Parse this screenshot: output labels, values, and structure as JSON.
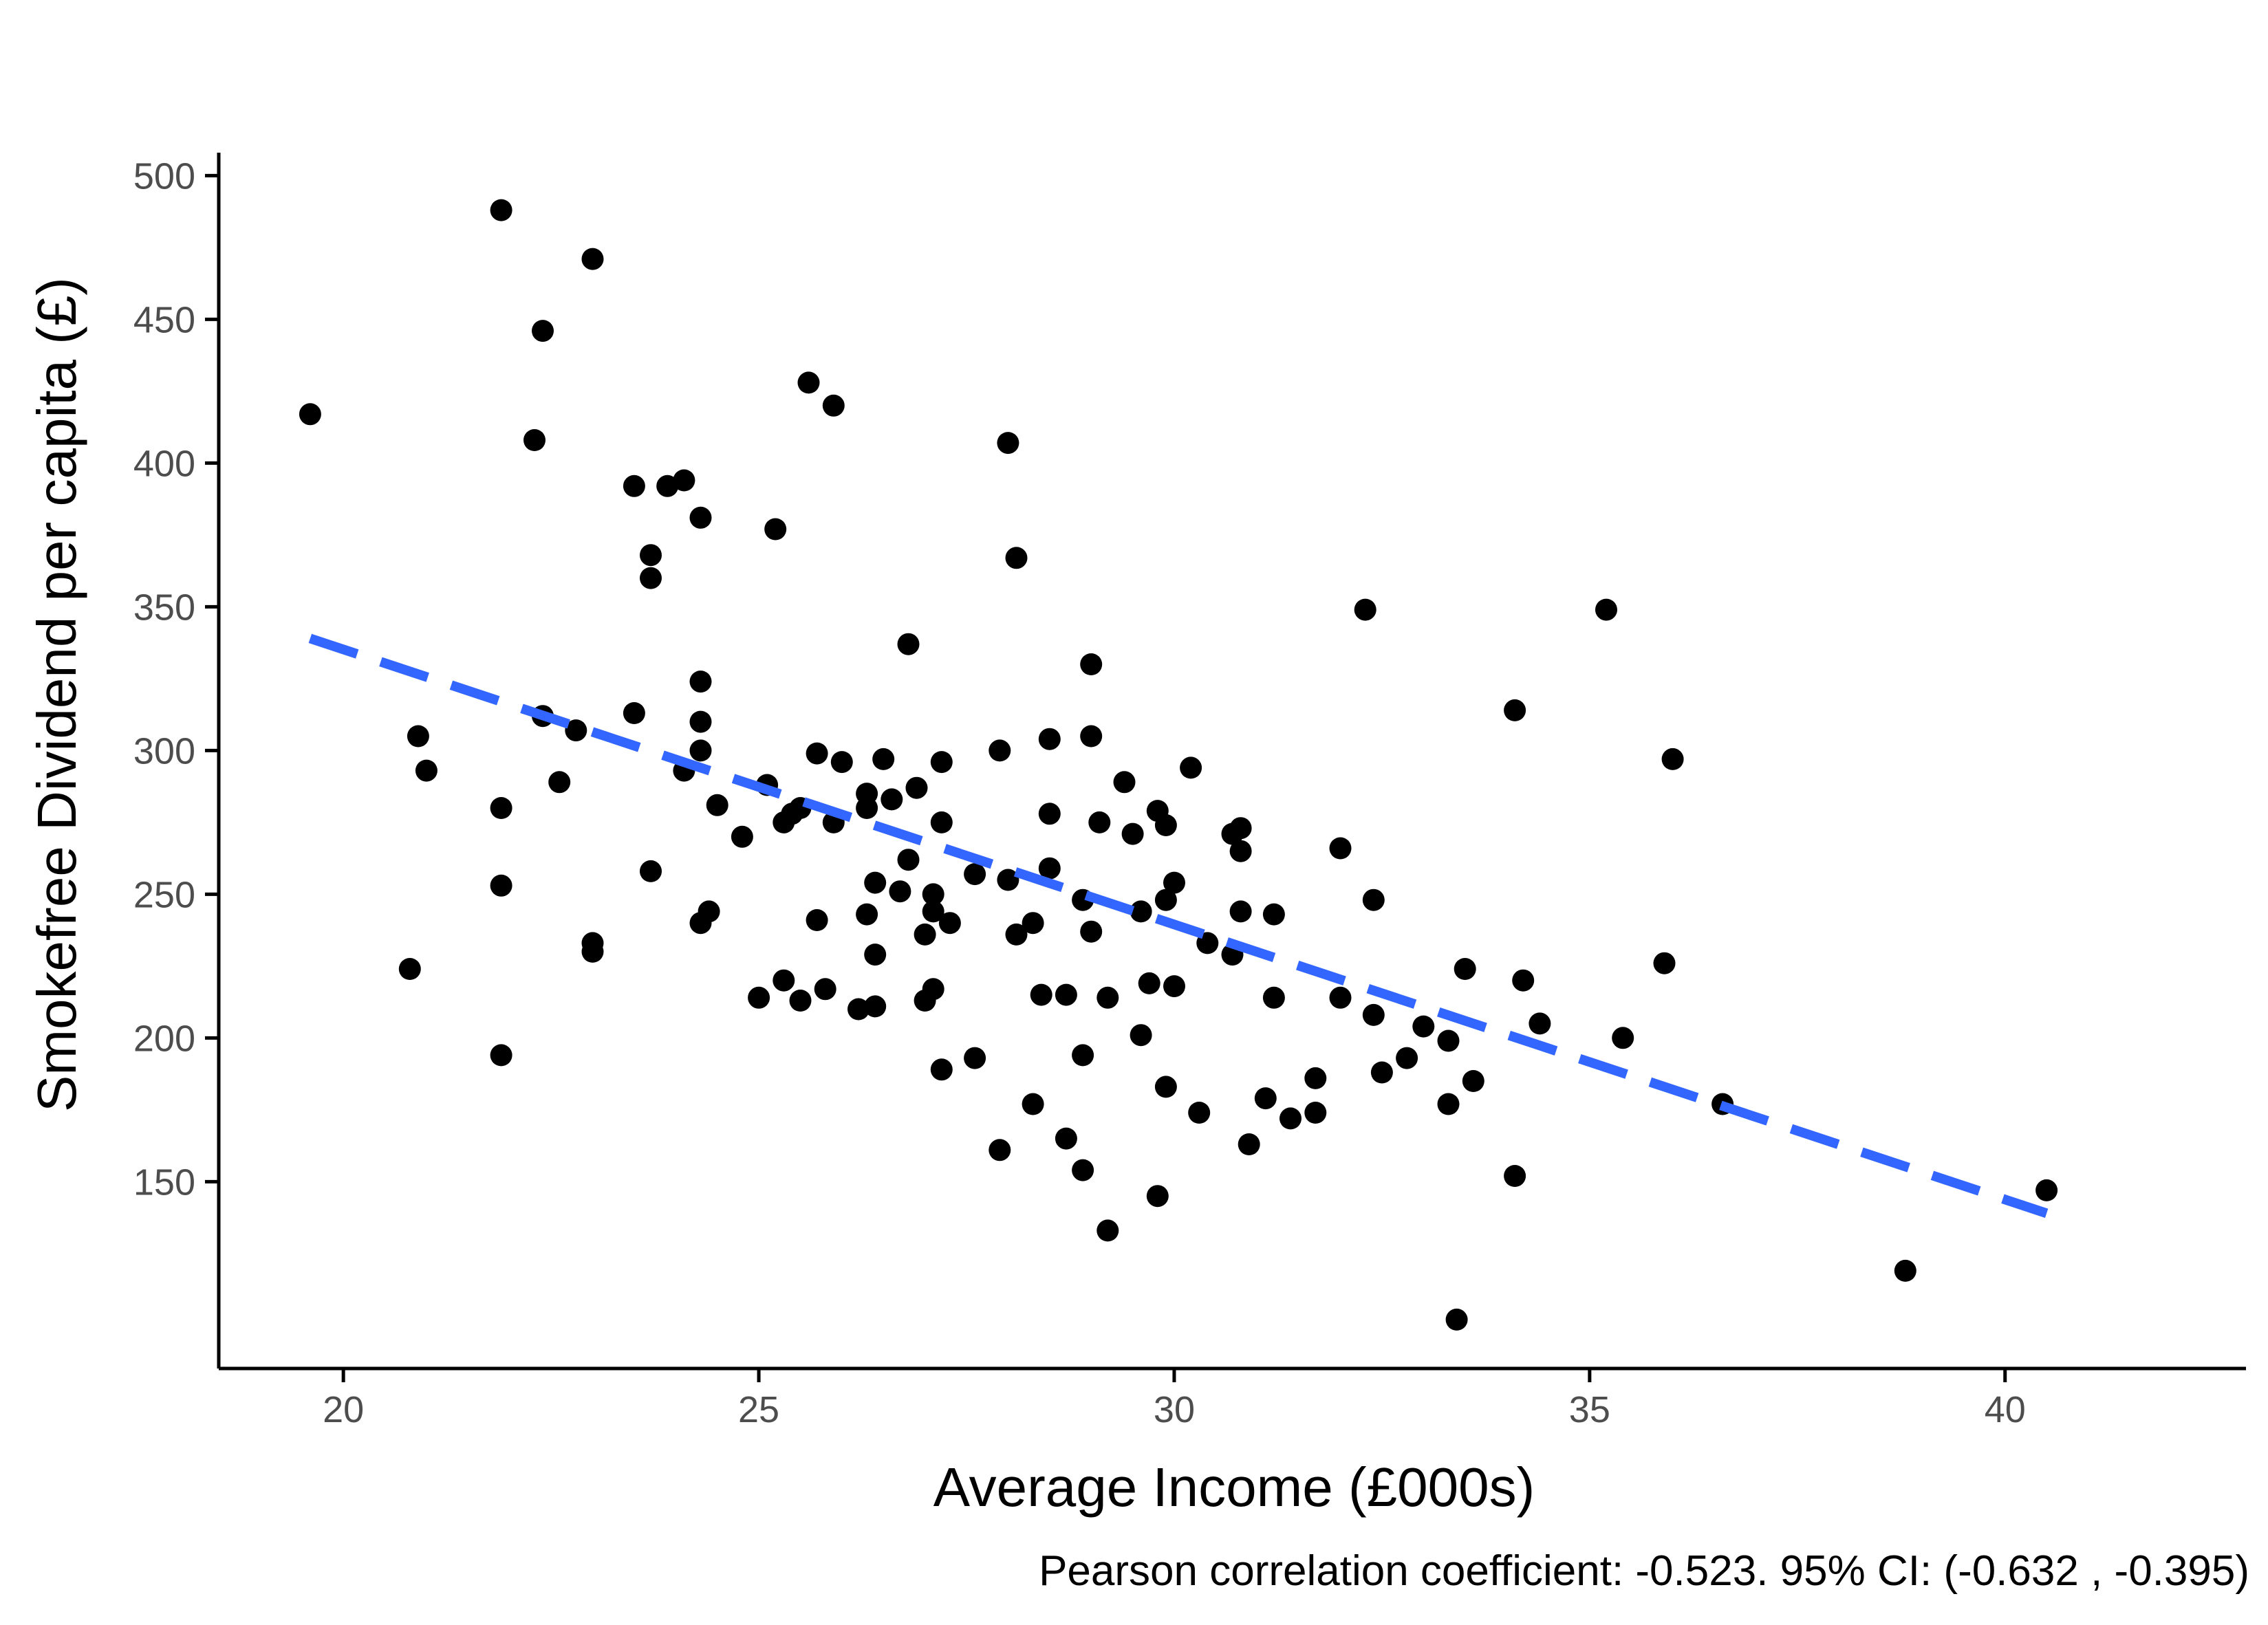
{
  "chart_data": {
    "type": "scatter",
    "title": "",
    "xlabel": "Average Income (£000s)",
    "ylabel": "Smokefree Dividend per capita (£)",
    "caption": "Pearson correlation coefficient: -0.523. 95% CI: (-0.632 , -0.395)",
    "xlim": [
      18.5,
      42.9
    ],
    "ylim": [
      85,
      508
    ],
    "x_ticks": [
      20,
      25,
      30,
      35,
      40
    ],
    "y_ticks": [
      150,
      200,
      250,
      300,
      350,
      400,
      450,
      500
    ],
    "grid": false,
    "legend": "none",
    "colors": {
      "points": "#000000",
      "trend": "#3366FF",
      "axis": "#000000",
      "tick_text": "#4d4d4d"
    },
    "trend_line": {
      "style": "dashed",
      "x": [
        19.6,
        40.5
      ],
      "y": [
        339,
        139
      ]
    },
    "points": [
      {
        "x": 19.6,
        "y": 417
      },
      {
        "x": 20.8,
        "y": 224
      },
      {
        "x": 20.9,
        "y": 305
      },
      {
        "x": 21.0,
        "y": 293
      },
      {
        "x": 21.9,
        "y": 488
      },
      {
        "x": 21.9,
        "y": 280
      },
      {
        "x": 21.9,
        "y": 253
      },
      {
        "x": 21.9,
        "y": 194
      },
      {
        "x": 22.3,
        "y": 408
      },
      {
        "x": 22.4,
        "y": 312
      },
      {
        "x": 22.4,
        "y": 446
      },
      {
        "x": 22.6,
        "y": 289
      },
      {
        "x": 22.8,
        "y": 307
      },
      {
        "x": 23.0,
        "y": 471
      },
      {
        "x": 23.0,
        "y": 230
      },
      {
        "x": 23.0,
        "y": 233
      },
      {
        "x": 23.5,
        "y": 392
      },
      {
        "x": 23.5,
        "y": 313
      },
      {
        "x": 23.7,
        "y": 368
      },
      {
        "x": 23.7,
        "y": 360
      },
      {
        "x": 23.7,
        "y": 258
      },
      {
        "x": 23.9,
        "y": 392
      },
      {
        "x": 24.1,
        "y": 394
      },
      {
        "x": 24.1,
        "y": 293
      },
      {
        "x": 24.3,
        "y": 324
      },
      {
        "x": 24.3,
        "y": 300
      },
      {
        "x": 24.3,
        "y": 381
      },
      {
        "x": 24.3,
        "y": 310
      },
      {
        "x": 24.3,
        "y": 240
      },
      {
        "x": 24.4,
        "y": 244
      },
      {
        "x": 24.5,
        "y": 281
      },
      {
        "x": 24.8,
        "y": 270
      },
      {
        "x": 25.0,
        "y": 214
      },
      {
        "x": 25.1,
        "y": 288
      },
      {
        "x": 25.2,
        "y": 377
      },
      {
        "x": 25.3,
        "y": 275
      },
      {
        "x": 25.3,
        "y": 220
      },
      {
        "x": 25.4,
        "y": 278
      },
      {
        "x": 25.5,
        "y": 280
      },
      {
        "x": 25.5,
        "y": 213
      },
      {
        "x": 25.6,
        "y": 428
      },
      {
        "x": 25.7,
        "y": 241
      },
      {
        "x": 25.7,
        "y": 299
      },
      {
        "x": 25.8,
        "y": 217
      },
      {
        "x": 25.9,
        "y": 420
      },
      {
        "x": 25.9,
        "y": 275
      },
      {
        "x": 26.0,
        "y": 296
      },
      {
        "x": 26.2,
        "y": 210
      },
      {
        "x": 26.3,
        "y": 285
      },
      {
        "x": 26.3,
        "y": 280
      },
      {
        "x": 26.3,
        "y": 243
      },
      {
        "x": 26.4,
        "y": 254
      },
      {
        "x": 26.4,
        "y": 229
      },
      {
        "x": 26.4,
        "y": 211
      },
      {
        "x": 26.5,
        "y": 297
      },
      {
        "x": 26.6,
        "y": 283
      },
      {
        "x": 26.7,
        "y": 251
      },
      {
        "x": 26.8,
        "y": 262
      },
      {
        "x": 26.8,
        "y": 337
      },
      {
        "x": 26.9,
        "y": 287
      },
      {
        "x": 27.0,
        "y": 213
      },
      {
        "x": 27.0,
        "y": 236
      },
      {
        "x": 27.1,
        "y": 250
      },
      {
        "x": 27.1,
        "y": 244
      },
      {
        "x": 27.1,
        "y": 217
      },
      {
        "x": 27.2,
        "y": 296
      },
      {
        "x": 27.2,
        "y": 275
      },
      {
        "x": 27.2,
        "y": 189
      },
      {
        "x": 27.3,
        "y": 240
      },
      {
        "x": 27.6,
        "y": 257
      },
      {
        "x": 27.6,
        "y": 193
      },
      {
        "x": 27.9,
        "y": 300
      },
      {
        "x": 27.9,
        "y": 161
      },
      {
        "x": 28.0,
        "y": 407
      },
      {
        "x": 28.0,
        "y": 255
      },
      {
        "x": 28.1,
        "y": 367
      },
      {
        "x": 28.1,
        "y": 236
      },
      {
        "x": 28.3,
        "y": 240
      },
      {
        "x": 28.3,
        "y": 177
      },
      {
        "x": 28.4,
        "y": 215
      },
      {
        "x": 28.5,
        "y": 304
      },
      {
        "x": 28.5,
        "y": 278
      },
      {
        "x": 28.5,
        "y": 259
      },
      {
        "x": 28.7,
        "y": 215
      },
      {
        "x": 28.7,
        "y": 165
      },
      {
        "x": 28.9,
        "y": 248
      },
      {
        "x": 28.9,
        "y": 194
      },
      {
        "x": 28.9,
        "y": 154
      },
      {
        "x": 29.0,
        "y": 237
      },
      {
        "x": 29.0,
        "y": 330
      },
      {
        "x": 29.0,
        "y": 305
      },
      {
        "x": 29.1,
        "y": 275
      },
      {
        "x": 29.2,
        "y": 133
      },
      {
        "x": 29.2,
        "y": 214
      },
      {
        "x": 29.4,
        "y": 289
      },
      {
        "x": 29.5,
        "y": 271
      },
      {
        "x": 29.6,
        "y": 244
      },
      {
        "x": 29.6,
        "y": 201
      },
      {
        "x": 29.7,
        "y": 219
      },
      {
        "x": 29.8,
        "y": 279
      },
      {
        "x": 29.8,
        "y": 145
      },
      {
        "x": 29.9,
        "y": 274
      },
      {
        "x": 29.9,
        "y": 248
      },
      {
        "x": 29.9,
        "y": 183
      },
      {
        "x": 30.0,
        "y": 254
      },
      {
        "x": 30.0,
        "y": 218
      },
      {
        "x": 30.2,
        "y": 294
      },
      {
        "x": 30.3,
        "y": 174
      },
      {
        "x": 30.4,
        "y": 233
      },
      {
        "x": 30.7,
        "y": 271
      },
      {
        "x": 30.7,
        "y": 229
      },
      {
        "x": 30.8,
        "y": 244
      },
      {
        "x": 30.8,
        "y": 273
      },
      {
        "x": 30.8,
        "y": 265
      },
      {
        "x": 30.9,
        "y": 163
      },
      {
        "x": 31.1,
        "y": 179
      },
      {
        "x": 31.2,
        "y": 243
      },
      {
        "x": 31.2,
        "y": 214
      },
      {
        "x": 31.4,
        "y": 172
      },
      {
        "x": 31.7,
        "y": 186
      },
      {
        "x": 31.7,
        "y": 174
      },
      {
        "x": 32.0,
        "y": 214
      },
      {
        "x": 32.0,
        "y": 266
      },
      {
        "x": 32.3,
        "y": 349
      },
      {
        "x": 32.4,
        "y": 248
      },
      {
        "x": 32.4,
        "y": 208
      },
      {
        "x": 32.5,
        "y": 188
      },
      {
        "x": 32.8,
        "y": 193
      },
      {
        "x": 33.0,
        "y": 204
      },
      {
        "x": 33.3,
        "y": 177
      },
      {
        "x": 33.3,
        "y": 199
      },
      {
        "x": 33.4,
        "y": 102
      },
      {
        "x": 33.5,
        "y": 224
      },
      {
        "x": 33.6,
        "y": 185
      },
      {
        "x": 34.1,
        "y": 314
      },
      {
        "x": 34.1,
        "y": 152
      },
      {
        "x": 34.2,
        "y": 220
      },
      {
        "x": 34.4,
        "y": 205
      },
      {
        "x": 35.2,
        "y": 349
      },
      {
        "x": 35.4,
        "y": 200
      },
      {
        "x": 35.9,
        "y": 226
      },
      {
        "x": 36.0,
        "y": 297
      },
      {
        "x": 36.6,
        "y": 177
      },
      {
        "x": 38.8,
        "y": 119
      },
      {
        "x": 40.5,
        "y": 147
      }
    ]
  }
}
